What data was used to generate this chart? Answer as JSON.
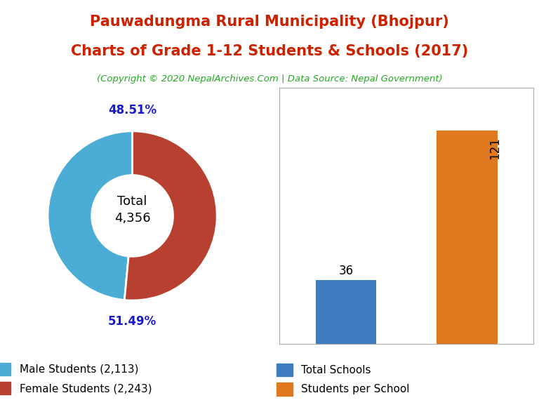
{
  "title_line1": "Pauwadungma Rural Municipality (Bhojpur)",
  "title_line2": "Charts of Grade 1-12 Students & Schools (2017)",
  "subtitle": "(Copyright © 2020 NepalArchives.Com | Data Source: Nepal Government)",
  "title_color": "#cc2200",
  "subtitle_color": "#22aa22",
  "donut_values": [
    2113,
    2243
  ],
  "donut_colors": [
    "#4bacd6",
    "#b84030"
  ],
  "donut_labels": [
    "48.51%",
    "51.49%"
  ],
  "donut_total_label": "Total\n4,356",
  "legend_donut": [
    "Male Students (2,113)",
    "Female Students (2,243)"
  ],
  "percent_color": "#1a1acc",
  "bar_values": [
    36,
    121
  ],
  "bar_colors": [
    "#3d7dbf",
    "#e07820"
  ],
  "bar_labels": [
    "Total Schools",
    "Students per School"
  ],
  "bar_label_color": "#000000",
  "background_color": "#ffffff"
}
